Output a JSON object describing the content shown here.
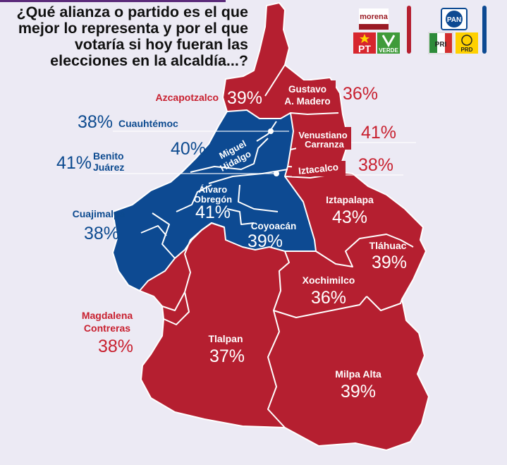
{
  "question": "¿Qué alianza o partido es el que mejor lo representa y por el que votaría si hoy fueran las elecciones en la alcaldía...?",
  "colors": {
    "red": "#b51f30",
    "red_label": "#c8202f",
    "blue": "#0d4a92",
    "blue_label": "#0c4a8f",
    "background": "#eceaf4"
  },
  "logos": {
    "left": {
      "morena": "morena",
      "pt": "PT",
      "verde": "VERDE",
      "bar_color": "#b51f30"
    },
    "right": {
      "pan": "PAN",
      "pri": "PRI",
      "prd": "PRD",
      "bar_color": "#0d4a92"
    }
  },
  "alcaldias": [
    {
      "name": "Azcapotzalco",
      "percent": "39%",
      "winner": "red"
    },
    {
      "name": "Gustavo A. Madero",
      "line1": "Gustavo",
      "line2": "A. Madero",
      "percent": "36%",
      "winner": "red"
    },
    {
      "name": "Cuauhtémoc",
      "percent": "38%",
      "winner": "blue"
    },
    {
      "name": "Venustiano Carranza",
      "line1": "Venustiano",
      "line2": "Carranza",
      "percent": "41%",
      "winner": "red"
    },
    {
      "name": "Miguel Hidalgo",
      "line1": "Miguel",
      "line2": "Hidalgo",
      "percent": "40%",
      "winner": "blue"
    },
    {
      "name": "Benito Juárez",
      "line1": "Benito",
      "line2": "Juárez",
      "percent": "41%",
      "winner": "blue"
    },
    {
      "name": "Iztacalco",
      "percent": "38%",
      "winner": "red"
    },
    {
      "name": "Álvaro Obregón",
      "line1": "Álvaro",
      "line2": "Obregón",
      "percent": "41%",
      "winner": "blue"
    },
    {
      "name": "Iztapalapa",
      "percent": "43%",
      "winner": "red"
    },
    {
      "name": "Cuajimalpa",
      "percent": "38%",
      "winner": "blue"
    },
    {
      "name": "Coyoacán",
      "percent": "39%",
      "winner": "blue"
    },
    {
      "name": "Tláhuac",
      "percent": "39%",
      "winner": "red"
    },
    {
      "name": "Xochimilco",
      "percent": "36%",
      "winner": "red"
    },
    {
      "name": "Magdalena Contreras",
      "line1": "Magdalena",
      "line2": "Contreras",
      "percent": "38%",
      "winner": "red"
    },
    {
      "name": "Tlalpan",
      "percent": "37%",
      "winner": "red"
    },
    {
      "name": "Milpa Alta",
      "percent": "39%",
      "winner": "red"
    }
  ]
}
